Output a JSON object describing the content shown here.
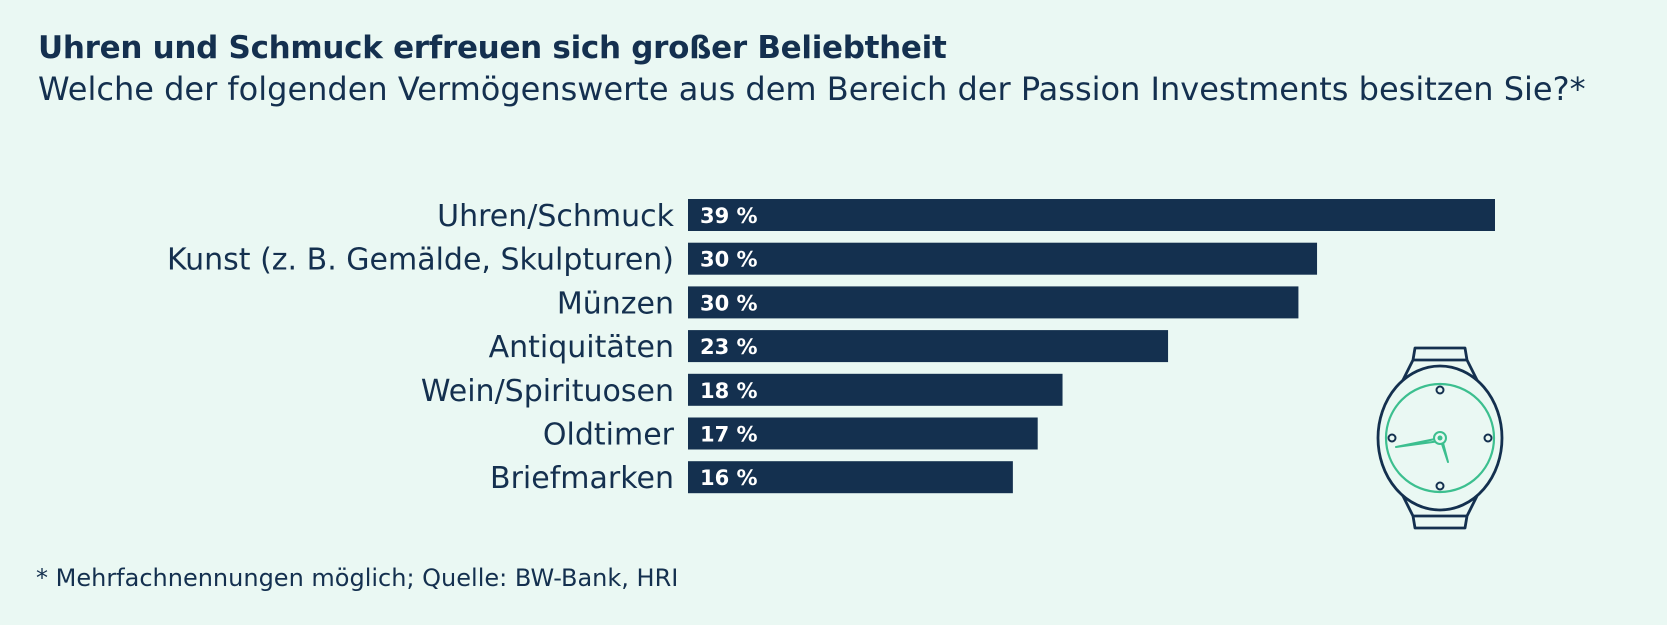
{
  "title": "Uhren und Schmuck erfreuen sich großer Beliebtheit",
  "subtitle": "Welche der folgenden Vermögenswerte aus dem Bereich der Passion Investments besitzen Sie?*",
  "footnote": "* Mehrfachnennungen möglich; Quelle: BW-Bank, HRI",
  "colors": {
    "background": "#eaf8f3",
    "bar": "#14304f",
    "bar_label": "#ffffff",
    "text": "#14304f",
    "accent": "#3cbf8f"
  },
  "illustration": {
    "icon": "wristwatch-icon"
  },
  "chart_data": {
    "type": "bar",
    "orientation": "horizontal",
    "title": "Uhren und Schmuck erfreuen sich großer Beliebtheit",
    "subtitle": "Welche der folgenden Vermögenswerte aus dem Bereich der Passion Investments besitzen Sie?*",
    "categories": [
      "Uhren/Schmuck",
      "Kunst (z. B. Gemälde, Skulpturen)",
      "Münzen",
      "Antiquitäten",
      "Wein/Spirituosen",
      "Oldtimer",
      "Briefmarken"
    ],
    "values": [
      39,
      30,
      30,
      23,
      18,
      17,
      16
    ],
    "bar_values": [
      39,
      30.4,
      29.5,
      23.2,
      18.1,
      16.9,
      15.7
    ],
    "value_labels": [
      "39 %",
      "30 %",
      "30 %",
      "23 %",
      "18 %",
      "17 %",
      "16 %"
    ],
    "unit": "%",
    "xlim": [
      0,
      39
    ],
    "xlabel": "",
    "ylabel": "",
    "grid": false,
    "legend": "none"
  }
}
